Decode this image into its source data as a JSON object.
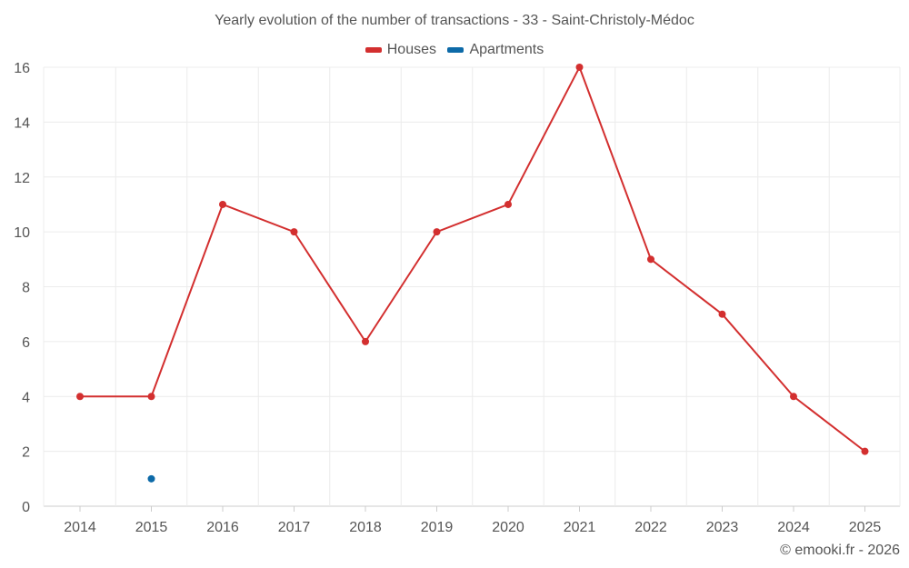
{
  "chart_data": {
    "type": "line",
    "title": "Yearly evolution of the number of transactions - 33 - Saint-Christoly-Médoc",
    "xlabel": "",
    "ylabel": "",
    "ylim": [
      0,
      16
    ],
    "yticks": [
      "0",
      "2",
      "4",
      "6",
      "8",
      "10",
      "12",
      "14",
      "16"
    ],
    "categories": [
      "2014",
      "2015",
      "2016",
      "2017",
      "2018",
      "2019",
      "2020",
      "2021",
      "2022",
      "2023",
      "2024",
      "2025"
    ],
    "series": [
      {
        "name": "Houses",
        "color": "#d32f2f",
        "values": [
          4,
          4,
          11,
          10,
          6,
          10,
          11,
          16,
          9,
          7,
          4,
          2
        ]
      },
      {
        "name": "Apartments",
        "color": "#0d6aa8",
        "values": [
          null,
          1,
          null,
          null,
          null,
          null,
          null,
          null,
          null,
          null,
          null,
          null
        ]
      }
    ],
    "grid": true,
    "legend_position": "top-center"
  },
  "credit": "© emooki.fr - 2026"
}
